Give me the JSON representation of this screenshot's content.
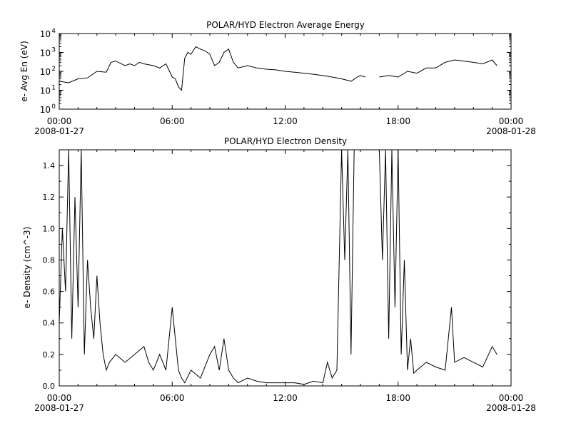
{
  "chart_data": [
    {
      "type": "line",
      "title": "POLAR/HYD  Electron Average Energy",
      "ylabel": "e- Avg En (eV)",
      "yscale": "log",
      "ylim": [
        1,
        10000
      ],
      "xlim": [
        "2008-01-27 00:00",
        "2008-01-28 00:00"
      ],
      "x_ticks": [
        "00:00",
        "06:00",
        "12:00",
        "18:00",
        "00:00"
      ],
      "x_date_labels": [
        "2008-01-27",
        "2008-01-28"
      ],
      "y_ticks": [
        1,
        10,
        100,
        1000,
        10000
      ],
      "y_tick_labels": [
        {
          "base": "10",
          "exp": "0"
        },
        {
          "base": "10",
          "exp": "1"
        },
        {
          "base": "10",
          "exp": "2"
        },
        {
          "base": "10",
          "exp": "3"
        },
        {
          "base": "10",
          "exp": "4"
        }
      ],
      "series": [
        {
          "x": [
            "00:00",
            "00:30",
            "01:00",
            "01:30",
            "02:00",
            "02:30",
            "02:45",
            "03:00",
            "03:30",
            "03:45",
            "04:00",
            "04:15",
            "04:30",
            "05:00",
            "05:20",
            "05:40",
            "06:00",
            "06:10",
            "06:20",
            "06:30",
            "06:40",
            "06:50",
            "07:00",
            "07:15",
            "07:30",
            "07:45",
            "08:00",
            "08:15",
            "08:30",
            "08:45",
            "09:00",
            "09:15",
            "09:30",
            "10:00",
            "10:30",
            "11:00",
            "11:30",
            "12:00",
            "12:30",
            "13:00",
            "13:30",
            "14:00",
            "14:30",
            "15:00",
            "15:30",
            "15:50",
            "16:00",
            "16:15"
          ],
          "y": [
            30,
            25,
            40,
            45,
            100,
            90,
            300,
            350,
            200,
            250,
            200,
            300,
            250,
            200,
            150,
            250,
            50,
            40,
            15,
            10,
            500,
            1000,
            800,
            2000,
            1500,
            1200,
            800,
            200,
            300,
            1000,
            1500,
            300,
            150,
            200,
            150,
            130,
            120,
            100,
            90,
            80,
            70,
            60,
            50,
            40,
            30,
            50,
            60,
            50
          ]
        },
        {
          "x": [
            "17:00",
            "17:30",
            "18:00",
            "18:30",
            "19:00",
            "19:30",
            "20:00",
            "20:30",
            "21:00",
            "21:30",
            "22:00",
            "22:30",
            "23:00",
            "23:15"
          ],
          "y": [
            50,
            60,
            50,
            100,
            80,
            150,
            150,
            300,
            400,
            350,
            300,
            250,
            400,
            200
          ]
        }
      ]
    },
    {
      "type": "line",
      "title": "POLAR/HYD  Electron Density",
      "ylabel": "e- Density (cm^-3)",
      "ylim": [
        0,
        1.5
      ],
      "xlim": [
        "2008-01-27 00:00",
        "2008-01-28 00:00"
      ],
      "x_ticks": [
        "00:00",
        "06:00",
        "12:00",
        "18:00",
        "00:00"
      ],
      "x_date_labels": [
        "2008-01-27",
        "2008-01-28"
      ],
      "y_ticks": [
        0.0,
        0.2,
        0.4,
        0.6,
        0.8,
        1.0,
        1.2,
        1.4
      ],
      "y_tick_labels": [
        "0.0",
        "0.2",
        "0.4",
        "0.6",
        "0.8",
        "1.0",
        "1.2",
        "1.4"
      ],
      "series": [
        {
          "x": [
            "00:00",
            "00:10",
            "00:20",
            "00:30",
            "00:40",
            "00:50",
            "01:00",
            "01:10",
            "01:20",
            "01:30",
            "01:40",
            "01:50",
            "02:00",
            "02:10",
            "02:20",
            "02:30",
            "02:40",
            "03:00",
            "03:30",
            "04:00",
            "04:30",
            "04:45",
            "05:00",
            "05:20",
            "05:40",
            "06:00",
            "06:10",
            "06:20",
            "06:30",
            "06:40",
            "07:00",
            "07:30",
            "08:00",
            "08:15",
            "08:30",
            "08:45",
            "09:00",
            "09:15",
            "09:30",
            "10:00",
            "10:30",
            "11:00",
            "11:30",
            "12:00",
            "12:30",
            "13:00",
            "13:30",
            "14:00",
            "14:15",
            "14:30",
            "14:45",
            "15:00",
            "15:10",
            "15:20",
            "15:30",
            "15:40",
            "16:00",
            "16:15"
          ],
          "y": [
            0.4,
            1.0,
            0.6,
            1.5,
            0.3,
            1.2,
            0.5,
            1.5,
            0.2,
            0.8,
            0.5,
            0.3,
            0.7,
            0.4,
            0.2,
            0.1,
            0.15,
            0.2,
            0.15,
            0.2,
            0.25,
            0.15,
            0.1,
            0.2,
            0.1,
            0.5,
            0.3,
            0.1,
            0.05,
            0.02,
            0.1,
            0.05,
            0.2,
            0.25,
            0.1,
            0.3,
            0.1,
            0.05,
            0.02,
            0.05,
            0.03,
            0.02,
            0.02,
            0.02,
            0.02,
            0.01,
            0.03,
            0.02,
            0.15,
            0.05,
            0.1,
            1.5,
            0.8,
            1.5,
            0.2,
            1.5,
            1.5,
            1.5
          ]
        },
        {
          "x": [
            "17:00",
            "17:10",
            "17:20",
            "17:30",
            "17:40",
            "17:50",
            "18:00",
            "18:10",
            "18:20",
            "18:30",
            "18:40",
            "18:50",
            "19:00",
            "19:30",
            "20:00",
            "20:30",
            "20:50",
            "21:00",
            "21:30",
            "22:00",
            "22:30",
            "23:00",
            "23:15"
          ],
          "y": [
            1.5,
            0.8,
            1.5,
            0.3,
            1.5,
            0.5,
            1.5,
            0.2,
            0.8,
            0.1,
            0.3,
            0.08,
            0.1,
            0.15,
            0.12,
            0.1,
            0.5,
            0.15,
            0.18,
            0.15,
            0.12,
            0.25,
            0.2
          ]
        }
      ]
    }
  ]
}
